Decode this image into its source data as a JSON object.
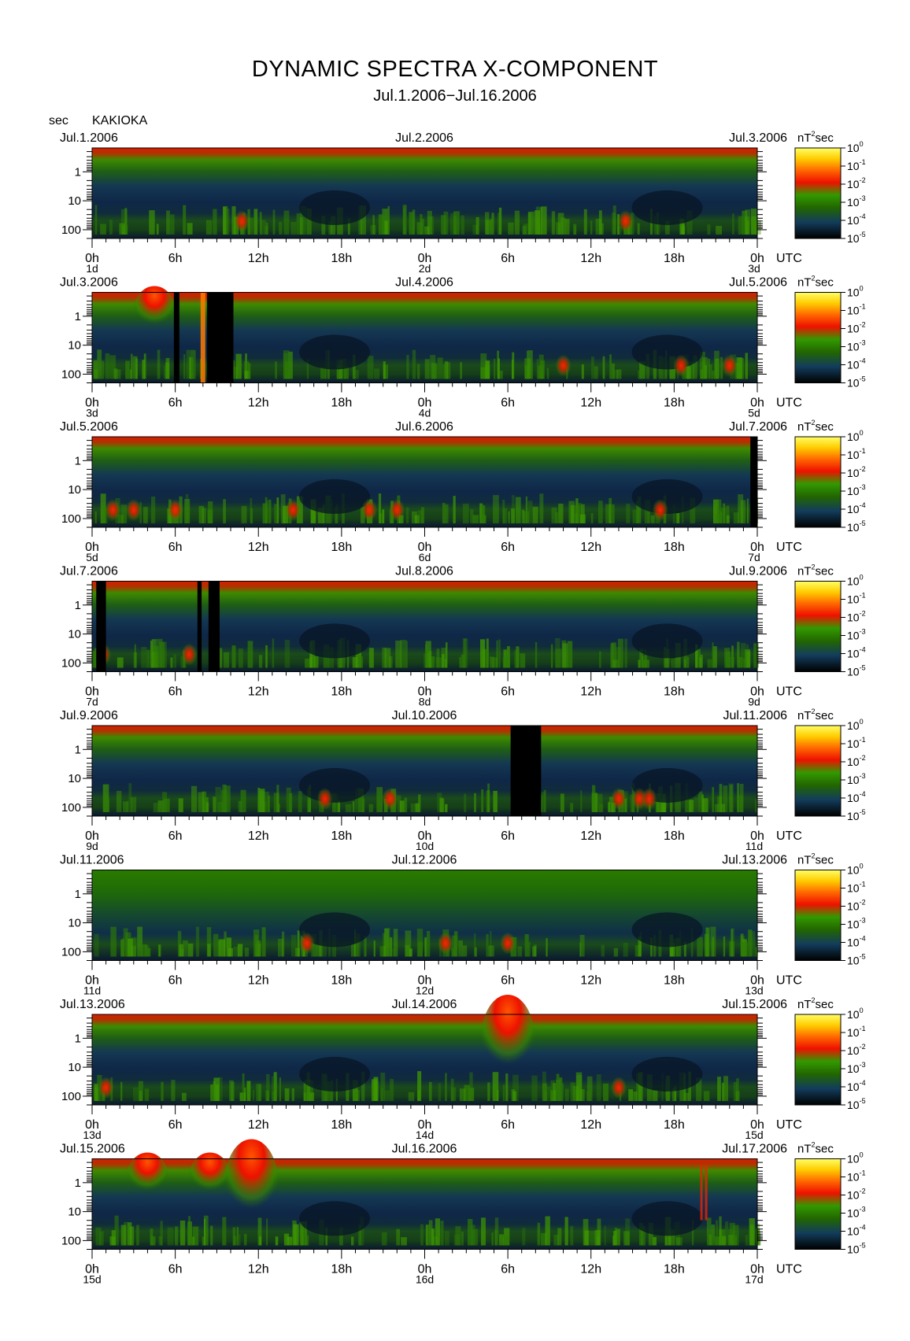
{
  "title": "DYNAMIC SPECTRA X-COMPONENT",
  "subtitle": "Jul.1.2006−Jul.16.2006",
  "station": "KAKIOKA",
  "y_unit": "sec",
  "x_unit": "UTC",
  "colorbar_unit_base": "nT",
  "colorbar_unit_exp": "2",
  "colorbar_unit_suffix": "sec",
  "chart_data": {
    "type": "heatmap",
    "y_axis": {
      "label": "sec",
      "scale": "log",
      "reversed": true,
      "ticks": [
        "1",
        "10",
        "100"
      ]
    },
    "x_ticks": [
      "0h",
      "6h",
      "12h",
      "18h",
      "0h",
      "6h",
      "12h",
      "18h",
      "0h"
    ],
    "colorbar": {
      "unit": "nT²sec",
      "tick_exponents": [
        "0",
        "-1",
        "-2",
        "-3",
        "-4",
        "-5"
      ],
      "colors": [
        "#ffff66",
        "#ffcc00",
        "#ff6600",
        "#ee1100",
        "#339900",
        "#226600",
        "#133c5c",
        "#000000"
      ]
    },
    "panels": [
      {
        "date_left": "Jul.1.2006",
        "date_mid": "Jul.2.2006",
        "date_right": "Jul.3.2006",
        "day_left": "1d",
        "day_mid": "2d",
        "day_right": "3d",
        "black_bands_h": [],
        "events": [
          {
            "t": 10.8,
            "kind": "low"
          },
          {
            "t": 38.5,
            "kind": "low"
          }
        ]
      },
      {
        "date_left": "Jul.3.2006",
        "date_mid": "Jul.4.2006",
        "date_right": "Jul.5.2006",
        "day_left": "3d",
        "day_mid": "4d",
        "day_right": "5d",
        "black_bands_h": [
          [
            5.9,
            6.3
          ],
          [
            8.3,
            10.2
          ]
        ],
        "events": [
          {
            "t": 4.5,
            "kind": "high"
          },
          {
            "t": 8.0,
            "kind": "full"
          },
          {
            "t": 34.0,
            "kind": "low"
          },
          {
            "t": 42.5,
            "kind": "low"
          },
          {
            "t": 46.0,
            "kind": "low"
          }
        ]
      },
      {
        "date_left": "Jul.5.2006",
        "date_mid": "Jul.6.2006",
        "date_right": "Jul.7.2006",
        "day_left": "5d",
        "day_mid": "6d",
        "day_right": "7d",
        "black_bands_h": [
          [
            47.5,
            48.0
          ]
        ],
        "events": [
          {
            "t": 1.5,
            "kind": "low"
          },
          {
            "t": 3.0,
            "kind": "low"
          },
          {
            "t": 6.0,
            "kind": "low"
          },
          {
            "t": 14.5,
            "kind": "low"
          },
          {
            "t": 20.0,
            "kind": "low"
          },
          {
            "t": 22.0,
            "kind": "low"
          },
          {
            "t": 41.0,
            "kind": "low"
          }
        ]
      },
      {
        "date_left": "Jul.7.2006",
        "date_mid": "Jul.8.2006",
        "date_right": "Jul.9.2006",
        "day_left": "7d",
        "day_mid": "8d",
        "day_right": "9d",
        "black_bands_h": [
          [
            0.3,
            1.0
          ],
          [
            7.6,
            7.9
          ],
          [
            8.4,
            9.2
          ]
        ],
        "events": [
          {
            "t": 0.8,
            "kind": "low"
          },
          {
            "t": 7.0,
            "kind": "low"
          }
        ]
      },
      {
        "date_left": "Jul.9.2006",
        "date_mid": "Jul.10.2006",
        "date_right": "Jul.11.2006",
        "day_left": "9d",
        "day_mid": "10d",
        "day_right": "11d",
        "black_bands_h": [
          [
            30.2,
            32.4
          ]
        ],
        "events": [
          {
            "t": 16.8,
            "kind": "low"
          },
          {
            "t": 21.5,
            "kind": "low"
          },
          {
            "t": 38.0,
            "kind": "low"
          },
          {
            "t": 39.5,
            "kind": "low"
          },
          {
            "t": 40.2,
            "kind": "low"
          }
        ]
      },
      {
        "date_left": "Jul.11.2006",
        "date_mid": "Jul.12.2006",
        "date_right": "Jul.13.2006",
        "day_left": "11d",
        "day_mid": "12d",
        "day_right": "13d",
        "black_bands_h": [],
        "events": [
          {
            "t": 15.5,
            "kind": "low"
          },
          {
            "t": 25.5,
            "kind": "low"
          },
          {
            "t": 30.0,
            "kind": "low"
          }
        ]
      },
      {
        "date_left": "Jul.13.2006",
        "date_mid": "Jul.14.2006",
        "date_right": "Jul.15.2006",
        "day_left": "13d",
        "day_mid": "14d",
        "day_right": "15d",
        "black_bands_h": [],
        "events": [
          {
            "t": 30.0,
            "kind": "big"
          },
          {
            "t": 38.0,
            "kind": "low"
          },
          {
            "t": 1.0,
            "kind": "low"
          }
        ]
      },
      {
        "date_left": "Jul.15.2006",
        "date_mid": "Jul.16.2006",
        "date_right": "Jul.17.2006",
        "day_left": "15d",
        "day_mid": "16d",
        "day_right": "17d",
        "black_bands_h": [],
        "events": [
          {
            "t": 4.0,
            "kind": "high"
          },
          {
            "t": 8.5,
            "kind": "high"
          },
          {
            "t": 11.5,
            "kind": "big"
          },
          {
            "t": 44.0,
            "kind": "streak"
          }
        ]
      }
    ]
  }
}
